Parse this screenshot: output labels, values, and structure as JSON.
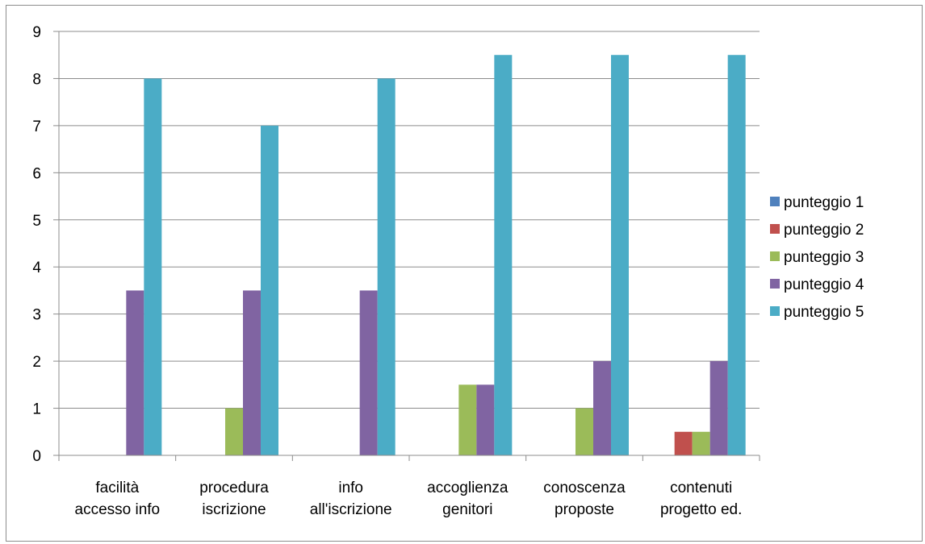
{
  "chart_data": {
    "type": "bar",
    "title": "",
    "xlabel": "",
    "ylabel": "",
    "ylim": [
      0,
      9
    ],
    "yticks": [
      0,
      1,
      2,
      3,
      4,
      5,
      6,
      7,
      8,
      9
    ],
    "grid": true,
    "legend": "right",
    "categories": [
      [
        "facilità",
        "accesso info"
      ],
      [
        "procedura",
        "iscrizione"
      ],
      [
        "info",
        "all'iscrizione"
      ],
      [
        "accoglienza",
        "genitori"
      ],
      [
        "conoscenza",
        "proposte"
      ],
      [
        "contenuti",
        "progetto ed."
      ]
    ],
    "series": [
      {
        "name": "punteggio 1",
        "color": "#4F81BD",
        "values": [
          0,
          0,
          0,
          0,
          0,
          0
        ]
      },
      {
        "name": "punteggio 2",
        "color": "#C0504D",
        "values": [
          0,
          0,
          0,
          0,
          0,
          0.5
        ]
      },
      {
        "name": "punteggio 3",
        "color": "#9BBB59",
        "values": [
          0,
          1,
          0,
          1.5,
          1,
          0.5
        ]
      },
      {
        "name": "punteggio 4",
        "color": "#8064A2",
        "values": [
          3.5,
          3.5,
          3.5,
          1.5,
          2,
          2
        ]
      },
      {
        "name": "punteggio 5",
        "color": "#4BACC6",
        "values": [
          8,
          7,
          8,
          8.5,
          8.5,
          8.5
        ]
      }
    ]
  }
}
